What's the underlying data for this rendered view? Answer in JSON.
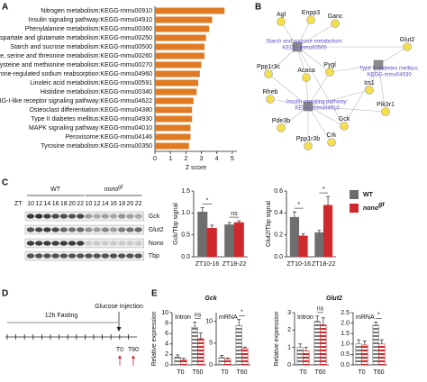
{
  "panel_labels": [
    "A",
    "B",
    "C",
    "D",
    "E"
  ],
  "chart_data": [
    {
      "type": "barh",
      "xlabel": "Z score",
      "color": "#e07b24",
      "categories": [
        "Nitrogen metabolism:KEGG-mmu00910",
        "Insulin signaling pathway:KEGG-mmu04910",
        "Phenylalanine metabolism:KEGG-mmu00360",
        "Alanine, aspartate and glutamate metabolism:KEGG-mmu00250",
        "Starch and sucrose metabolism:KEGG-mmu00500",
        "Glycine, serine and threonine metabolism:KEGG-mmu00260",
        "Cysteine and methionine metabolism:KEGG-mmu00270",
        "Aldosterone-regulated sodium reabsorption:KEGG-mmu04960",
        "Linoleic acid metabolism:KEGG-mmu00591",
        "Histidine metabolism:KEGG-mmu00340",
        "RIG-I-like receptor signaling pathway:KEGG-mmu04622",
        "Osteoclast differentiation:KEGG-mmu04380",
        "Type II diabetes mellitus:KEGG-mmu04930",
        "MAPK signaling pathway:KEGG-mmu04010",
        "Peroxisome:KEGG-mmu04146",
        "Tyrosine metabolism:KEGG-mmu00350"
      ],
      "values": [
        4.5,
        3.7,
        3.5,
        3.3,
        3.2,
        3.2,
        3.0,
        2.9,
        2.8,
        2.7,
        2.5,
        2.4,
        2.4,
        2.3,
        2.3,
        2.2
      ],
      "xlim": [
        0,
        5.3
      ],
      "xticks": [
        0,
        1,
        2,
        3,
        4,
        5
      ]
    },
    {
      "type": "bar",
      "ylabel": "Gck/Tbp signal",
      "categories": [
        "ZT10-16",
        "ZT18-22"
      ],
      "legend": true,
      "series": [
        {
          "name": "WT",
          "color": "#6e6e6e",
          "values": [
            1.02,
            0.73
          ],
          "errors": [
            0.1,
            0.05
          ]
        },
        {
          "name": "nono",
          "name_superscript": "gt",
          "color": "#d0282d",
          "values": [
            0.65,
            0.78
          ],
          "errors": [
            0.07,
            0.04
          ]
        }
      ],
      "significance": [
        "*",
        "ns"
      ],
      "ylim": [
        0,
        1.5
      ],
      "yticks": [
        {
          "value": 0,
          "label": "0.0"
        },
        {
          "value": 0.5,
          "label": "0.5"
        },
        {
          "value": 1,
          "label": "1.0"
        },
        {
          "value": 1.5,
          "label": "1.5"
        }
      ]
    },
    {
      "type": "bar",
      "ylabel": "Glut2/Tbp signal",
      "categories": [
        "ZT10-16",
        "ZT18-22"
      ],
      "series": [
        {
          "color": "#6e6e6e",
          "values": [
            0.36,
            0.22
          ],
          "errors": [
            0.05,
            0.02
          ]
        },
        {
          "color": "#d0282d",
          "values": [
            0.19,
            0.47
          ],
          "errors": [
            0.02,
            0.08
          ]
        }
      ],
      "significance": [
        "*",
        "*"
      ],
      "ylim": [
        0,
        0.6
      ],
      "yticks": [
        {
          "value": 0,
          "label": "0.0"
        },
        {
          "value": 0.2,
          "label": "0.2"
        },
        {
          "value": 0.4,
          "label": "0.4"
        },
        {
          "value": 0.6,
          "label": "0.6"
        }
      ]
    },
    {
      "type": "bar",
      "title": "Gck",
      "subtitle": "Intron",
      "ylabel": "Relative expression",
      "hatched": true,
      "categories": [
        "T0",
        "T60"
      ],
      "series": [
        {
          "color": "#7a7a7a",
          "values": [
            1.5,
            7.2
          ],
          "errors": [
            0.4,
            1.0
          ]
        },
        {
          "color": "#d0282d",
          "values": [
            1.0,
            5.0
          ],
          "errors": [
            0.3,
            1.1
          ]
        }
      ],
      "significance": [
        null,
        "ns"
      ],
      "ylim": [
        0,
        10
      ],
      "yticks": [
        0,
        2,
        4,
        6,
        8,
        10
      ]
    },
    {
      "type": "bar",
      "subtitle": "mRNA",
      "hatched": true,
      "categories": [
        "T0",
        "T60"
      ],
      "series": [
        {
          "color": "#7a7a7a",
          "values": [
            1.7,
            9.0
          ],
          "errors": [
            0.5,
            1.4
          ]
        },
        {
          "color": "#d0282d",
          "values": [
            1.3,
            3.8
          ],
          "errors": [
            0.3,
            0.3
          ]
        }
      ],
      "significance": [
        null,
        "*"
      ],
      "ylim": [
        0,
        12
      ],
      "yticks": [
        0,
        5,
        10
      ]
    },
    {
      "type": "bar",
      "title": "Glut2",
      "subtitle": "Intron",
      "ylabel": "Relative expression",
      "hatched": true,
      "categories": [
        "T0",
        "T60"
      ],
      "series": [
        {
          "color": "#7a7a7a",
          "values": [
            1.0,
            2.5
          ],
          "errors": [
            0.2,
            0.3
          ]
        },
        {
          "color": "#d0282d",
          "values": [
            0.8,
            2.3
          ],
          "errors": [
            0.2,
            0.4
          ]
        }
      ],
      "significance": [
        null,
        "ns"
      ],
      "ylim": [
        0,
        3
      ],
      "yticks": [
        0,
        1,
        2,
        3
      ]
    },
    {
      "type": "bar",
      "subtitle": "mRNA",
      "hatched": true,
      "categories": [
        "T0",
        "T60"
      ],
      "series": [
        {
          "color": "#7a7a7a",
          "values": [
            1.0,
            1.9
          ],
          "errors": [
            0.2,
            0.15
          ]
        },
        {
          "color": "#d0282d",
          "values": [
            0.95,
            1.0
          ],
          "errors": [
            0.2,
            0.2
          ]
        }
      ],
      "significance": [
        null,
        "*"
      ],
      "ylim": [
        0,
        2.5
      ],
      "yticks": [
        {
          "value": 0,
          "label": "0.0"
        },
        {
          "value": 0.5,
          "label": "0.5"
        },
        {
          "value": 1,
          "label": "1.0"
        },
        {
          "value": 1.5,
          "label": "1.5"
        },
        {
          "value": 2,
          "label": "2.0"
        },
        {
          "value": 2.5,
          "label": "2.5"
        }
      ]
    }
  ],
  "network": {
    "genes": [
      "Agl",
      "Enpp3",
      "Ganc",
      "Glut2",
      "Ppp1r3c",
      "Acaca",
      "Pygl",
      "Irs1",
      "Rheb",
      "Pik3r1",
      "Gck",
      "Pde3b",
      "Ppp1r3b",
      "Crk"
    ],
    "pathways": [
      [
        "Starch and sucrose metabolism:",
        "KEGG-mmu00500"
      ],
      [
        "Type II diabetes mellitus:",
        "KEGG-mmu04930"
      ],
      [
        "Insulin signaling pathway:",
        "KEGG-mmu04910"
      ]
    ]
  },
  "blot": {
    "time_prefix": "ZT",
    "times": [
      "10",
      "12",
      "14",
      "16",
      "18",
      "20",
      "22",
      "10",
      "12",
      "14",
      "16",
      "18",
      "20",
      "22"
    ],
    "groups": [
      {
        "text": "WT"
      },
      {
        "text": "nono",
        "superscript": "gt"
      }
    ],
    "rows": [
      "Gck",
      "Glut2",
      "Nono",
      "Tbp"
    ]
  },
  "timeline": {
    "duration_label": "12h Fasting",
    "event_label": "Glucose Injection",
    "timepoints": [
      "T0",
      "T60"
    ]
  }
}
